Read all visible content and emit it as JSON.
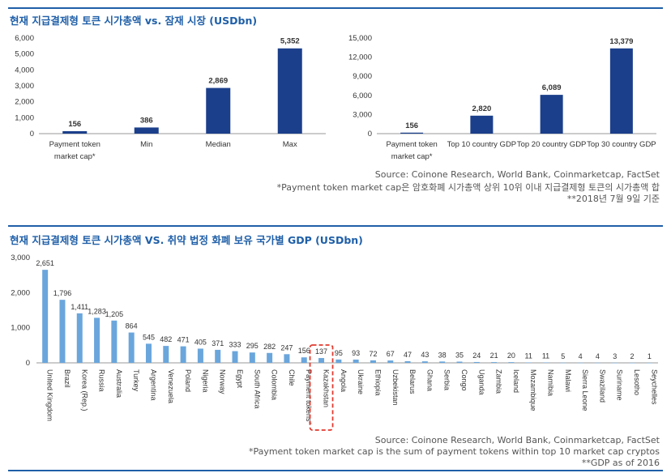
{
  "top": {
    "title": "현재 지급결제형 토큰 시가총액 vs. 잠재 시장 (USDbn)",
    "notes": [
      "Source: Coinone Research, World Bank, Coinmarketcap, FactSet",
      "*Payment token market cap은 암호화폐 시가총액 상위 10위 이내 지급결제형 토큰의 시가총액 합",
      "**2018년 7월 9일 기준"
    ]
  },
  "bottom": {
    "title": "현재 지급결제형 토큰 시가총액 VS. 취약 법정 화폐 보유 국가별 GDP (USDbn)",
    "notes": [
      "Source: Coinone Research, World Bank, Coinmarketcap, FactSet",
      "*Payment token market cap is the sum of payment tokens within top 10 market cap cryptos",
      "**GDP as of 2016"
    ]
  },
  "chart_data": [
    {
      "type": "bar",
      "title": "",
      "categories": [
        [
          "Payment token",
          "market cap*"
        ],
        [
          "Min"
        ],
        [
          "Median"
        ],
        [
          "Max"
        ]
      ],
      "values": [
        156,
        386,
        2869,
        5352
      ],
      "value_labels": [
        "156",
        "386",
        "2,869",
        "5,352"
      ],
      "ylim": [
        0,
        6000
      ],
      "yticks": [
        0,
        1000,
        2000,
        3000,
        4000,
        5000,
        6000
      ],
      "ytick_labels": [
        "0",
        "1,000",
        "2,000",
        "3,000",
        "4,000",
        "5,000",
        "6,000"
      ],
      "color": "#1b3f8b",
      "grid": false
    },
    {
      "type": "bar",
      "title": "",
      "categories": [
        [
          "Payment token",
          "market cap*"
        ],
        [
          "Top 10 country GDP"
        ],
        [
          "Top 20 country GDP"
        ],
        [
          "Top 30 country GDP"
        ]
      ],
      "values": [
        156,
        2820,
        6089,
        13379
      ],
      "value_labels": [
        "156",
        "2,820",
        "6,089",
        "13,379"
      ],
      "ylim": [
        0,
        15000
      ],
      "yticks": [
        0,
        3000,
        6000,
        9000,
        12000,
        15000
      ],
      "ytick_labels": [
        "0",
        "3,000",
        "6,000",
        "9,000",
        "12,000",
        "15,000"
      ],
      "color": "#1b3f8b",
      "grid": false
    },
    {
      "type": "bar",
      "title": "",
      "categories": [
        "United Kingdom",
        "Brazil",
        "Korea (Rep.)",
        "Russia",
        "Australia",
        "Turkey",
        "Argentina",
        "Venezuela",
        "Poland",
        "Nigeria",
        "Norway",
        "Egypt",
        "South Africa",
        "Colombia",
        "Chile",
        "Payment tokens*",
        "Kazakhstan",
        "Angola",
        "Ukraine",
        "Ethiopia",
        "Uzbekistan",
        "Belarus",
        "Ghana",
        "Serbia",
        "Congo",
        "Uganda",
        "Zambia",
        "Iceland",
        "Mozambique",
        "Namibia",
        "Malawi",
        "Sierra Leone",
        "Swaziland",
        "Suriname",
        "Lesotho",
        "Seychelles"
      ],
      "values": [
        2651,
        1796,
        1411,
        1283,
        1205,
        864,
        545,
        482,
        471,
        405,
        371,
        333,
        295,
        282,
        247,
        156,
        137,
        95,
        93,
        72,
        67,
        47,
        43,
        38,
        35,
        24,
        21,
        20,
        11,
        11,
        5,
        4,
        4,
        3,
        2,
        1
      ],
      "value_labels": [
        "2,651",
        "1,796",
        "1,411",
        "1,283",
        "1,205",
        "864",
        "545",
        "482",
        "471",
        "405",
        "371",
        "333",
        "295",
        "282",
        "247",
        "156",
        "137",
        "95",
        "93",
        "72",
        "67",
        "47",
        "43",
        "38",
        "35",
        "24",
        "21",
        "20",
        "11",
        "11",
        "5",
        "4",
        "4",
        "3",
        "2",
        "1"
      ],
      "ylim": [
        0,
        3000
      ],
      "yticks": [
        0,
        1000,
        2000,
        3000
      ],
      "ytick_labels": [
        "0",
        "1,000",
        "2,000",
        "3,000"
      ],
      "color": "#6aa6dc",
      "highlight_category": "Kazakhstan",
      "highlight_color": "#e03a2f",
      "grid": false
    }
  ]
}
